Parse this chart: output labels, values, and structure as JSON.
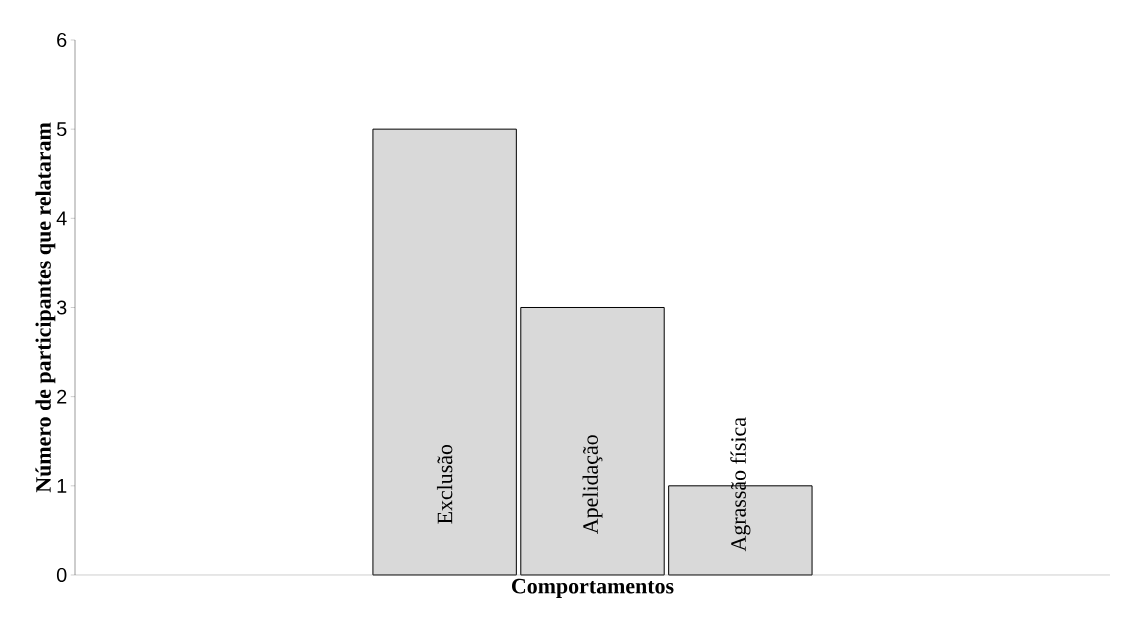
{
  "chart_data": {
    "type": "bar",
    "xlabel": "Comportamentos",
    "ylabel": "Número de participantes que relataram",
    "categories": [
      null,
      null,
      "Exclusão",
      "Apelidação",
      "Agrassão física",
      null,
      null
    ],
    "values": [
      null,
      null,
      5,
      3,
      1,
      null,
      null
    ],
    "color": "#d9d9d9",
    "ylim": [
      0,
      6
    ],
    "yticks": [
      0,
      1,
      2,
      3,
      4,
      5,
      6
    ],
    "grid": false
  }
}
